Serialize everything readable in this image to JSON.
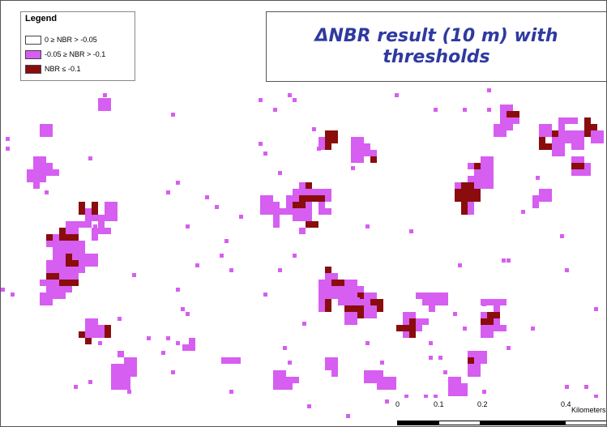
{
  "map": {
    "background": "#ffffff",
    "colors": {
      "moderate": "#d65ef0",
      "severe": "#8b0c0c"
    }
  },
  "legend": {
    "title": "Legend",
    "items": [
      {
        "label": "0 ≥ NBR > -0.05",
        "color": "#ffffff"
      },
      {
        "label": "-0.05 ≥ NBR > -0.1",
        "color": "#d65ef0"
      },
      {
        "label": "NBR ≤ -0.1",
        "color": "#8b0c0c"
      }
    ]
  },
  "title": "ΔNBR result (10 m) with thresholds",
  "scalebar": {
    "ticks": [
      "0",
      "0.1",
      "0.2",
      "0.4"
    ],
    "unit": "Kilometers"
  }
}
